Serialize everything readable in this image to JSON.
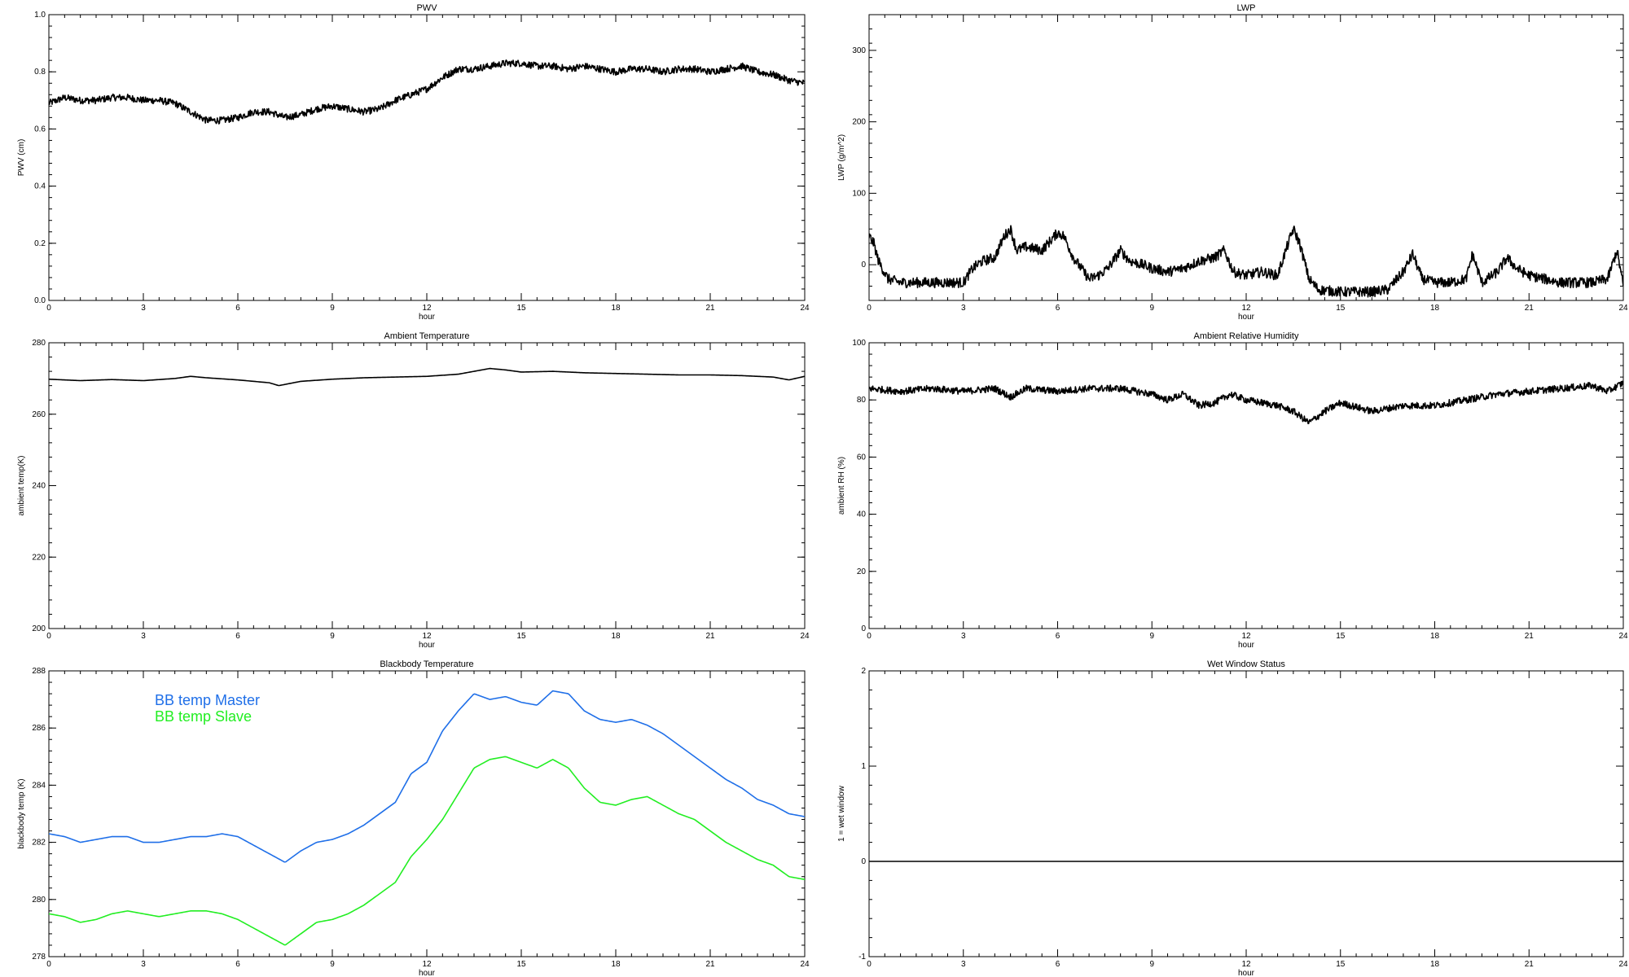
{
  "chart_data": [
    {
      "id": "pwv",
      "type": "line",
      "title": "PWV",
      "xlabel": "hour",
      "ylabel": "PWV (cm)",
      "xlim": [
        0,
        24
      ],
      "ylim": [
        0.0,
        1.0
      ],
      "xticks": [
        "0",
        "3",
        "6",
        "9",
        "12",
        "15",
        "18",
        "21",
        "24"
      ],
      "yticks": [
        "0.0",
        "0.2",
        "0.4",
        "0.6",
        "0.8",
        "1.0"
      ],
      "noisy": true,
      "series": [
        {
          "color": "#000000",
          "x": [
            0,
            0.5,
            1,
            1.5,
            2,
            2.5,
            3,
            3.5,
            4,
            4.5,
            5,
            5.5,
            6,
            6.5,
            7,
            7.5,
            8,
            8.5,
            9,
            9.5,
            10,
            10.5,
            11,
            11.5,
            12,
            12.5,
            13,
            13.5,
            14,
            14.5,
            15,
            15.5,
            16,
            16.5,
            17,
            17.5,
            18,
            18.5,
            19,
            19.5,
            20,
            20.5,
            21,
            21.5,
            22,
            22.5,
            23,
            23.5,
            24
          ],
          "y": [
            0.69,
            0.71,
            0.7,
            0.7,
            0.71,
            0.71,
            0.7,
            0.7,
            0.69,
            0.66,
            0.63,
            0.63,
            0.64,
            0.66,
            0.66,
            0.64,
            0.65,
            0.67,
            0.68,
            0.67,
            0.66,
            0.67,
            0.7,
            0.72,
            0.74,
            0.78,
            0.81,
            0.81,
            0.82,
            0.83,
            0.83,
            0.82,
            0.82,
            0.81,
            0.82,
            0.81,
            0.8,
            0.81,
            0.81,
            0.8,
            0.81,
            0.81,
            0.8,
            0.81,
            0.82,
            0.8,
            0.79,
            0.77,
            0.76
          ]
        }
      ]
    },
    {
      "id": "lwp",
      "type": "line",
      "title": "LWP",
      "xlabel": "hour",
      "ylabel": "LWP (g/m^2)",
      "xlim": [
        0,
        24
      ],
      "ylim": [
        -50,
        350
      ],
      "xticks": [
        "0",
        "3",
        "6",
        "9",
        "12",
        "15",
        "18",
        "21",
        "24"
      ],
      "yticks": [
        "0",
        "100",
        "200",
        "300"
      ],
      "ytick_values": [
        0,
        100,
        200,
        300
      ],
      "noisy": true,
      "series": [
        {
          "color": "#000000",
          "x": [
            0,
            0.15,
            0.3,
            0.6,
            1,
            2,
            3,
            3.3,
            3.6,
            4,
            4.3,
            4.5,
            4.7,
            5,
            5.5,
            6,
            6.2,
            6.5,
            7,
            7.3,
            7.6,
            8,
            8.3,
            8.7,
            9,
            9.5,
            10,
            10.5,
            11,
            11.3,
            11.6,
            12,
            12.5,
            13,
            13.3,
            13.5,
            13.7,
            14,
            14.3,
            15,
            16,
            16.5,
            17,
            17.3,
            17.6,
            18,
            18.5,
            19,
            19.2,
            19.5,
            20,
            20.3,
            20.6,
            21,
            21.5,
            22,
            22.5,
            23,
            23.5,
            23.8,
            24
          ],
          "y": [
            40,
            30,
            5,
            -20,
            -25,
            -25,
            -25,
            -5,
            5,
            10,
            40,
            50,
            20,
            25,
            20,
            45,
            40,
            10,
            -20,
            -15,
            -5,
            20,
            5,
            0,
            -5,
            -10,
            -5,
            5,
            10,
            20,
            -10,
            -15,
            -10,
            -15,
            25,
            50,
            30,
            -20,
            -35,
            -38,
            -38,
            -35,
            -10,
            15,
            -20,
            -25,
            -25,
            -20,
            15,
            -25,
            -10,
            10,
            -5,
            -15,
            -20,
            -25,
            -25,
            -25,
            -20,
            20,
            -30
          ]
        }
      ]
    },
    {
      "id": "ambient-temperature",
      "type": "line",
      "title": "Ambient Temperature",
      "xlabel": "hour",
      "ylabel": "ambient temp(K)",
      "xlim": [
        0,
        24
      ],
      "ylim": [
        200,
        280
      ],
      "xticks": [
        "0",
        "3",
        "6",
        "9",
        "12",
        "15",
        "18",
        "21",
        "24"
      ],
      "yticks": [
        "200",
        "220",
        "240",
        "260",
        "280"
      ],
      "series": [
        {
          "color": "#000000",
          "x": [
            0,
            1,
            2,
            3,
            4,
            4.5,
            5,
            6,
            7,
            7.3,
            8,
            9,
            10,
            11,
            12,
            13,
            13.5,
            14,
            14.5,
            15,
            16,
            17,
            18,
            19,
            20,
            21,
            22,
            23,
            23.5,
            24
          ],
          "y": [
            269.8,
            269.4,
            269.7,
            269.4,
            270.0,
            270.6,
            270.2,
            269.6,
            268.8,
            268.0,
            269.2,
            269.8,
            270.2,
            270.4,
            270.6,
            271.2,
            272.0,
            272.8,
            272.4,
            271.8,
            272.0,
            271.6,
            271.4,
            271.2,
            271.0,
            271.0,
            270.8,
            270.4,
            269.6,
            270.6
          ]
        }
      ]
    },
    {
      "id": "ambient-relative-humidity",
      "type": "line",
      "title": "Ambient Relative Humidity",
      "xlabel": "hour",
      "ylabel": "ambient RH (%)",
      "xlim": [
        0,
        24
      ],
      "ylim": [
        0,
        100
      ],
      "xticks": [
        "0",
        "3",
        "6",
        "9",
        "12",
        "15",
        "18",
        "21",
        "24"
      ],
      "yticks": [
        "0",
        "20",
        "40",
        "60",
        "80",
        "100"
      ],
      "noisy": true,
      "series": [
        {
          "color": "#000000",
          "x": [
            0,
            1,
            2,
            3,
            4,
            4.5,
            5,
            6,
            7,
            8,
            9,
            9.5,
            10,
            10.5,
            11,
            11.5,
            12,
            13,
            13.5,
            14,
            14.5,
            15,
            16,
            17,
            18,
            19,
            20,
            21,
            22,
            23,
            23.5,
            24
          ],
          "y": [
            84,
            83,
            84,
            83,
            84,
            81,
            84,
            83,
            84,
            84,
            82,
            80,
            82,
            78,
            79,
            82,
            80,
            78,
            76,
            72,
            76,
            79,
            76,
            78,
            78,
            80,
            82,
            83,
            84,
            85,
            83,
            86
          ]
        }
      ]
    },
    {
      "id": "blackbody-temperature",
      "type": "line",
      "title": "Blackbody Temperature",
      "xlabel": "hour",
      "ylabel": "blackbody temp (K)",
      "xlim": [
        0,
        24
      ],
      "ylim": [
        278,
        288
      ],
      "xticks": [
        "0",
        "3",
        "6",
        "9",
        "12",
        "15",
        "18",
        "21",
        "24"
      ],
      "yticks": [
        "278",
        "280",
        "282",
        "284",
        "286",
        "288"
      ],
      "legend": "top-left",
      "series": [
        {
          "name": "BB temp Master",
          "color": "#1f6fe8",
          "x": [
            0,
            0.5,
            1,
            1.5,
            2,
            2.5,
            3,
            3.5,
            4,
            4.5,
            5,
            5.5,
            6,
            6.5,
            7,
            7.5,
            8,
            8.5,
            9,
            9.5,
            10,
            10.5,
            11,
            11.5,
            12,
            12.5,
            13,
            13.5,
            14,
            14.5,
            15,
            15.5,
            16,
            16.5,
            17,
            17.5,
            18,
            18.5,
            19,
            19.5,
            20,
            20.5,
            21,
            21.5,
            22,
            22.5,
            23,
            23.5,
            24
          ],
          "y": [
            282.3,
            282.2,
            282.0,
            282.1,
            282.2,
            282.2,
            282.0,
            282.0,
            282.1,
            282.2,
            282.2,
            282.3,
            282.2,
            281.9,
            281.6,
            281.3,
            281.7,
            282.0,
            282.1,
            282.3,
            282.6,
            283.0,
            283.4,
            284.4,
            284.8,
            285.9,
            286.6,
            287.2,
            287.0,
            287.1,
            286.9,
            286.8,
            287.3,
            287.2,
            286.6,
            286.3,
            286.2,
            286.3,
            286.1,
            285.8,
            285.4,
            285.0,
            284.6,
            284.2,
            283.9,
            283.5,
            283.3,
            283.0,
            282.9
          ]
        },
        {
          "name": "BB temp Slave",
          "color": "#22ee22",
          "x": [
            0,
            0.5,
            1,
            1.5,
            2,
            2.5,
            3,
            3.5,
            4,
            4.5,
            5,
            5.5,
            6,
            6.5,
            7,
            7.5,
            8,
            8.5,
            9,
            9.5,
            10,
            10.5,
            11,
            11.5,
            12,
            12.5,
            13,
            13.5,
            14,
            14.5,
            15,
            15.5,
            16,
            16.5,
            17,
            17.5,
            18,
            18.5,
            19,
            19.5,
            20,
            20.5,
            21,
            21.5,
            22,
            22.5,
            23,
            23.5,
            24
          ],
          "y": [
            279.5,
            279.4,
            279.2,
            279.3,
            279.5,
            279.6,
            279.5,
            279.4,
            279.5,
            279.6,
            279.6,
            279.5,
            279.3,
            279.0,
            278.7,
            278.4,
            278.8,
            279.2,
            279.3,
            279.5,
            279.8,
            280.2,
            280.6,
            281.5,
            282.1,
            282.8,
            283.7,
            284.6,
            284.9,
            285.0,
            284.8,
            284.6,
            284.9,
            284.6,
            283.9,
            283.4,
            283.3,
            283.5,
            283.6,
            283.3,
            283.0,
            282.8,
            282.4,
            282.0,
            281.7,
            281.4,
            281.2,
            280.8,
            280.7
          ]
        }
      ]
    },
    {
      "id": "wet-window-status",
      "type": "line",
      "title": "Wet Window Status",
      "xlabel": "hour",
      "ylabel": "1 = wet window",
      "xlim": [
        0,
        24
      ],
      "ylim": [
        -1,
        2
      ],
      "xticks": [
        "0",
        "3",
        "6",
        "9",
        "12",
        "15",
        "18",
        "21",
        "24"
      ],
      "yticks": [
        "-1",
        "0",
        "1",
        "2"
      ],
      "series": [
        {
          "color": "#000000",
          "x": [
            0,
            24
          ],
          "y": [
            0,
            0
          ]
        }
      ]
    }
  ]
}
